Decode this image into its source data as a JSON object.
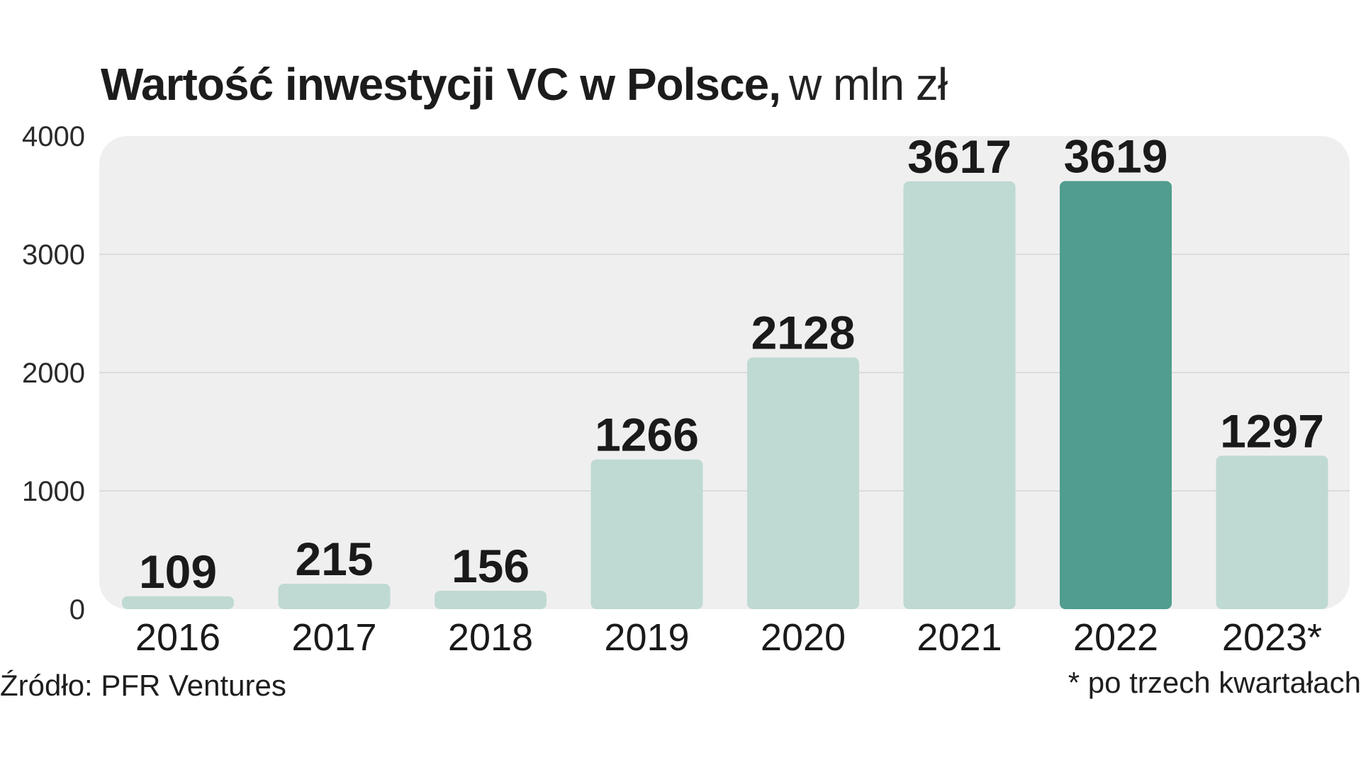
{
  "title": "Wartość inwestycji VC w Polsce,",
  "title_unit": "w mln zł",
  "source": "Źródło: PFR Ventures",
  "footnote": "* po trzech kwartałach",
  "colors": {
    "bar": "#bfd9d3",
    "highlight_bar": "#519d8f",
    "plot_background": "#efefef",
    "gridline": "#dcdcdc"
  },
  "chart_data": {
    "type": "bar",
    "title": "Wartość inwestycji VC w Polsce, w mln zł",
    "categories": [
      "2016",
      "2017",
      "2018",
      "2019",
      "2020",
      "2021",
      "2022",
      "2023*"
    ],
    "values": [
      109,
      215,
      156,
      1266,
      2128,
      3617,
      3619,
      1297
    ],
    "data_labels": [
      "109",
      "215",
      "156",
      "1266",
      "2128",
      "3617",
      "3619",
      "1297"
    ],
    "highlighted_category": "2022",
    "ylim": [
      0,
      4000
    ],
    "yticks": [
      0,
      1000,
      2000,
      3000,
      4000
    ],
    "ytick_labels": [
      "0",
      "1000",
      "2000",
      "3000",
      "4000"
    ],
    "grid": true,
    "legend": "none"
  }
}
